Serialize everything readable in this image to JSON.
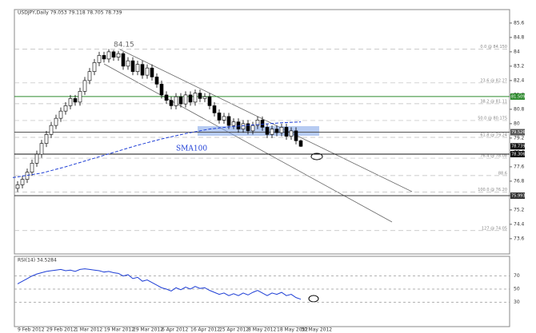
{
  "chart_data": {
    "type": "candlestick",
    "title": "USDJPY,Daily  79.053 79.118 78.705 78.739",
    "categories": [
      "9 Feb 2012",
      null,
      null,
      null,
      null,
      null,
      "29 Feb 2012",
      null,
      null,
      null,
      null,
      null,
      "1 Mar 2012",
      null,
      null,
      null,
      null,
      null,
      "19 Mar 2012",
      null,
      null,
      null,
      null,
      null,
      "29 Mar 2012",
      null,
      null,
      null,
      null,
      null,
      "6 Apr 2012",
      null,
      null,
      null,
      null,
      null,
      "16 Apr 2012",
      null,
      null,
      null,
      null,
      null,
      "25 Apr 2012",
      null,
      null,
      null,
      null,
      null,
      "8 May 2012",
      null,
      null,
      null,
      null,
      null,
      "18 May 2012",
      null,
      null,
      null,
      null,
      "30 May 2012"
    ],
    "open": [
      76.4,
      76.6,
      76.9,
      77.3,
      77.8,
      78.3,
      78.9,
      79.4,
      79.9,
      80.3,
      80.7,
      81.0,
      81.4,
      81.2,
      81.8,
      82.4,
      82.9,
      83.4,
      83.8,
      83.6,
      84.0,
      83.7,
      83.9,
      83.2,
      83.5,
      82.9,
      83.3,
      82.7,
      83.1,
      82.6,
      82.2,
      81.6,
      81.3,
      81.0,
      81.5,
      81.1,
      81.6,
      81.2,
      81.7,
      81.4,
      81.5,
      81.0,
      80.6,
      80.2,
      80.4,
      79.9,
      80.1,
      79.7,
      80.0,
      79.6,
      79.9,
      80.2,
      79.8,
      79.4,
      79.7,
      79.5,
      79.8,
      79.3,
      79.6,
      79.053
    ],
    "high": [
      76.8,
      77.1,
      77.5,
      78.0,
      78.5,
      79.1,
      79.6,
      80.1,
      80.5,
      80.9,
      81.2,
      81.6,
      81.6,
      82.0,
      82.6,
      83.1,
      83.6,
      84.0,
      84.0,
      84.15,
      84.1,
      84.05,
      84.0,
      83.7,
      83.7,
      83.5,
      83.5,
      83.3,
      83.3,
      82.8,
      82.4,
      81.8,
      81.5,
      81.7,
      81.7,
      81.8,
      81.8,
      81.9,
      81.9,
      81.7,
      81.7,
      81.2,
      80.8,
      80.6,
      80.6,
      80.3,
      80.3,
      80.2,
      80.2,
      80.1,
      80.4,
      80.4,
      80.0,
      79.9,
      79.9,
      80.0,
      80.0,
      79.8,
      79.8,
      79.118
    ],
    "low": [
      76.2,
      76.4,
      76.7,
      77.1,
      77.6,
      78.1,
      78.7,
      79.2,
      79.7,
      80.1,
      80.5,
      80.8,
      81.0,
      81.0,
      81.6,
      82.2,
      82.7,
      83.2,
      83.4,
      83.4,
      83.5,
      83.5,
      83.0,
      83.0,
      82.7,
      82.7,
      82.5,
      82.5,
      82.4,
      82.0,
      81.4,
      81.1,
      80.8,
      80.8,
      80.9,
      80.9,
      81.0,
      81.0,
      81.2,
      81.2,
      80.8,
      80.4,
      80.0,
      80.0,
      79.7,
      79.7,
      79.5,
      79.5,
      79.4,
      79.4,
      79.7,
      79.6,
      79.2,
      79.2,
      79.3,
      79.3,
      79.1,
      79.1,
      78.85,
      78.705
    ],
    "close": [
      76.6,
      76.9,
      77.3,
      77.8,
      78.3,
      78.9,
      79.4,
      79.9,
      80.3,
      80.7,
      81.0,
      81.4,
      81.2,
      81.8,
      82.4,
      82.9,
      83.4,
      83.8,
      83.6,
      84.0,
      83.7,
      83.9,
      83.2,
      83.5,
      82.9,
      83.3,
      82.7,
      83.1,
      82.6,
      82.2,
      81.6,
      81.3,
      81.0,
      81.5,
      81.1,
      81.6,
      81.2,
      81.7,
      81.4,
      81.5,
      81.0,
      80.6,
      80.2,
      80.4,
      79.9,
      80.1,
      79.7,
      80.0,
      79.6,
      79.9,
      80.2,
      79.8,
      79.4,
      79.7,
      79.5,
      79.8,
      79.3,
      79.6,
      79.05,
      78.739
    ],
    "ylim": [
      72.75,
      86.35
    ],
    "yticks": [
      73.6,
      74.4,
      75.2,
      76,
      76.8,
      77.6,
      78.4,
      79.2,
      80,
      80.8,
      81.6,
      82.4,
      83.2,
      84,
      84.8,
      85.6
    ],
    "sma": {
      "name": "SMA100",
      "color": "#1f3fd6",
      "x": [
        -1,
        5,
        10,
        15,
        20,
        25,
        30,
        35,
        40,
        45,
        50,
        55,
        59
      ],
      "values": [
        77.0,
        77.25,
        77.6,
        78.0,
        78.4,
        78.8,
        79.15,
        79.45,
        79.7,
        79.85,
        79.95,
        80.05,
        80.1
      ]
    },
    "fib": [
      {
        "value": 84.15,
        "label": "0.0 @ 84.150"
      },
      {
        "value": 82.27,
        "label": "23.6 @ 82.27"
      },
      {
        "value": 81.11,
        "label": "38.2 @ 81.11"
      },
      {
        "value": 80.175,
        "label": "50.0 @ 80.175"
      },
      {
        "value": 79.24,
        "label": "61.8 @ 79.24"
      },
      {
        "value": 78.08,
        "label": "76.4 @ 78.08"
      },
      {
        "value": 77.11,
        "label": "88.6"
      },
      {
        "value": 76.2,
        "label": "100.0 @ 76.20"
      },
      {
        "value": 74.05,
        "label": "127 @ 74.05"
      }
    ],
    "price_levels": [
      {
        "value": 81.509,
        "color": "#2e8b2e",
        "line": true
      },
      {
        "value": 79.526,
        "color": "#555555",
        "line": true
      },
      {
        "value": 78.739,
        "color": "#111111",
        "line": false
      },
      {
        "value": 78.306,
        "color": "#111111",
        "line": true
      },
      {
        "value": 75.993,
        "color": "#333333",
        "line": true
      }
    ],
    "annotations": [
      "84.15",
      "SMA100"
    ],
    "rsi": {
      "title": "RSI(14) 34.5284",
      "color": "#1f3fd6",
      "ylim": [
        0,
        100
      ],
      "yticks": [
        30,
        50,
        70
      ],
      "values": [
        58,
        62,
        66,
        70,
        73,
        75,
        77,
        78,
        79,
        80,
        78,
        79,
        77,
        80,
        81,
        80,
        79,
        78,
        76,
        77,
        75,
        74,
        70,
        72,
        66,
        68,
        62,
        64,
        60,
        56,
        52,
        50,
        47,
        52,
        49,
        53,
        50,
        54,
        51,
        52,
        48,
        45,
        42,
        44,
        40,
        43,
        40,
        44,
        41,
        45,
        48,
        44,
        40,
        44,
        42,
        45,
        40,
        42,
        37,
        34.5284
      ]
    }
  }
}
